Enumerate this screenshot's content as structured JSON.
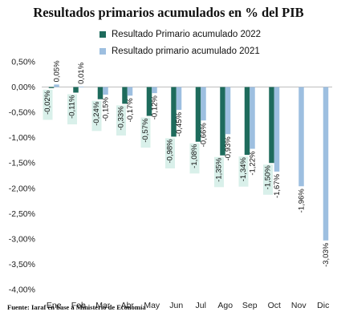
{
  "chart_data": {
    "type": "bar",
    "title": "Resultados primarios acumulados en % del PIB",
    "categories": [
      "Ene",
      "Feb",
      "Mar",
      "Abr",
      "May",
      "Jun",
      "Jul",
      "Ago",
      "Sep",
      "Oct",
      "Nov",
      "Dic"
    ],
    "series": [
      {
        "name": "Resultado Primario acumulado 2022",
        "color": "#1e6b5c",
        "values": [
          -0.02,
          -0.11,
          -0.24,
          -0.33,
          -0.57,
          -0.98,
          -1.08,
          -1.35,
          -1.34,
          -1.5,
          null,
          null
        ],
        "labels": [
          "-0,02%",
          "-0,11%",
          "-0,24%",
          "-0,33%",
          "-0,57%",
          "-0,98%",
          "-1,08%",
          "-1,35%",
          "-1,34%",
          "-1,50%",
          "",
          ""
        ]
      },
      {
        "name": "Resultado primario acumulado 2021",
        "color": "#9dbfe0",
        "values": [
          0.05,
          0.01,
          -0.15,
          -0.17,
          -0.12,
          -0.45,
          -0.66,
          -0.93,
          -1.22,
          -1.67,
          -1.96,
          -3.03
        ],
        "labels": [
          "0,05%",
          "0,01%",
          "-0,15%",
          "-0,17%",
          "-0,12%",
          "-0,45%",
          "-0,66%",
          "-0,93%",
          "-1,22%",
          "-1,67%",
          "-1,96%",
          "-3,03%"
        ]
      }
    ],
    "yticks": [
      0.5,
      0,
      -0.5,
      -1,
      -1.5,
      -2,
      -2.5,
      -3,
      -3.5,
      -4
    ],
    "ytick_labels": [
      "0,50%",
      "0,00%",
      "-0,50%",
      "-1,00%",
      "-1,50%",
      "-2,00%",
      "-2,50%",
      "-3,00%",
      "-3,50%",
      "-4,00%"
    ],
    "ylim": [
      -4,
      0.5
    ],
    "grid": false,
    "legend_position": "top"
  },
  "footer": {
    "source": "Fuente: Iaraf en base a Ministerio de Economía"
  }
}
